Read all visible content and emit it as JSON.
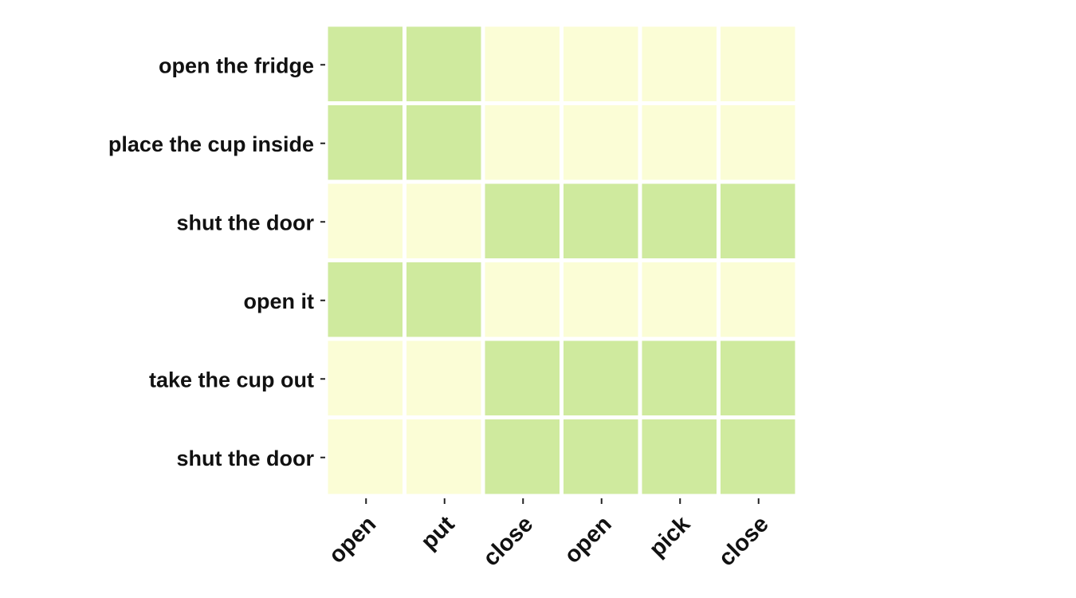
{
  "chart_data": {
    "type": "heatmap",
    "title": "",
    "xlabel": "",
    "ylabel": "",
    "rows": [
      "open the fridge",
      "place the cup inside",
      "shut the door",
      "open it",
      "take the cup out",
      "shut the door"
    ],
    "columns": [
      "open",
      "put",
      "close",
      "open",
      "pick",
      "close"
    ],
    "values": [
      [
        1,
        1,
        0,
        0,
        0,
        0
      ],
      [
        1,
        1,
        0,
        0,
        0,
        0
      ],
      [
        0,
        0,
        1,
        1,
        1,
        1
      ],
      [
        1,
        1,
        0,
        0,
        0,
        0
      ],
      [
        0,
        0,
        1,
        1,
        1,
        1
      ],
      [
        0,
        0,
        1,
        1,
        1,
        1
      ]
    ],
    "colors": {
      "high": "#cfea9e",
      "low": "#fbfdd6"
    },
    "grid": true,
    "legend": "none"
  }
}
